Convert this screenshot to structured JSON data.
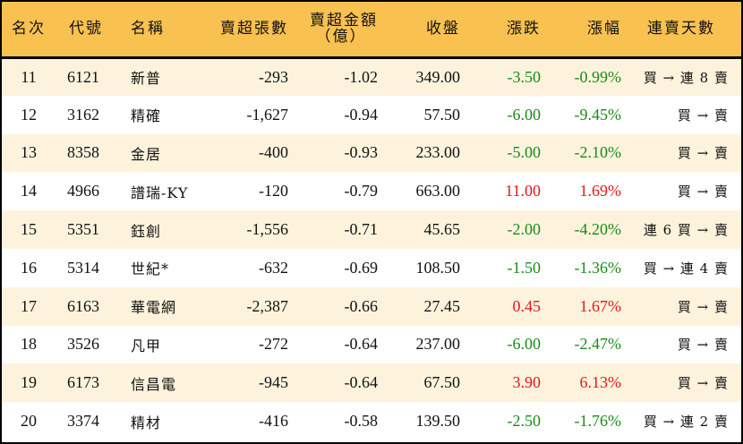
{
  "header": {
    "rank": "名次",
    "code": "代號",
    "name": "名稱",
    "net_sell_lots": "賣超張數",
    "net_sell_amount_l1": "賣超金額",
    "net_sell_amount_l2": "（億）",
    "close": "收盤",
    "change": "漲跌",
    "change_pct": "漲幅",
    "consecutive_days": "連賣天數"
  },
  "colors": {
    "header_bg": "#F8C150",
    "row_odd": "#FDF3DD",
    "row_even": "#FFFFFF",
    "down": "#1A8A1A",
    "up": "#E8141B"
  },
  "rows": [
    {
      "rank": "11",
      "code": "6121",
      "name": "新普",
      "lots": "-293",
      "amount": "-1.02",
      "close": "349.00",
      "change": "-3.50",
      "pct": "-0.99%",
      "dir": "neg",
      "days": "買 → 連 8 賣"
    },
    {
      "rank": "12",
      "code": "3162",
      "name": "精確",
      "lots": "-1,627",
      "amount": "-0.94",
      "close": "57.50",
      "change": "-6.00",
      "pct": "-9.45%",
      "dir": "neg",
      "days": "買 → 賣"
    },
    {
      "rank": "13",
      "code": "8358",
      "name": "金居",
      "lots": "-400",
      "amount": "-0.93",
      "close": "233.00",
      "change": "-5.00",
      "pct": "-2.10%",
      "dir": "neg",
      "days": "買 → 賣"
    },
    {
      "rank": "14",
      "code": "4966",
      "name": "譜瑞-KY",
      "lots": "-120",
      "amount": "-0.79",
      "close": "663.00",
      "change": "11.00",
      "pct": "1.69%",
      "dir": "pos",
      "days": "買 → 賣"
    },
    {
      "rank": "15",
      "code": "5351",
      "name": "鈺創",
      "lots": "-1,556",
      "amount": "-0.71",
      "close": "45.65",
      "change": "-2.00",
      "pct": "-4.20%",
      "dir": "neg",
      "days": "連 6 買 → 賣"
    },
    {
      "rank": "16",
      "code": "5314",
      "name": "世紀*",
      "lots": "-632",
      "amount": "-0.69",
      "close": "108.50",
      "change": "-1.50",
      "pct": "-1.36%",
      "dir": "neg",
      "days": "買 → 連 4 賣"
    },
    {
      "rank": "17",
      "code": "6163",
      "name": "華電網",
      "lots": "-2,387",
      "amount": "-0.66",
      "close": "27.45",
      "change": "0.45",
      "pct": "1.67%",
      "dir": "pos",
      "days": "買 → 賣"
    },
    {
      "rank": "18",
      "code": "3526",
      "name": "凡甲",
      "lots": "-272",
      "amount": "-0.64",
      "close": "237.00",
      "change": "-6.00",
      "pct": "-2.47%",
      "dir": "neg",
      "days": "買 → 賣"
    },
    {
      "rank": "19",
      "code": "6173",
      "name": "信昌電",
      "lots": "-945",
      "amount": "-0.64",
      "close": "67.50",
      "change": "3.90",
      "pct": "6.13%",
      "dir": "pos",
      "days": "買 → 賣"
    },
    {
      "rank": "20",
      "code": "3374",
      "name": "精材",
      "lots": "-416",
      "amount": "-0.58",
      "close": "139.50",
      "change": "-2.50",
      "pct": "-1.76%",
      "dir": "neg",
      "days": "買 → 連 2 賣"
    }
  ]
}
